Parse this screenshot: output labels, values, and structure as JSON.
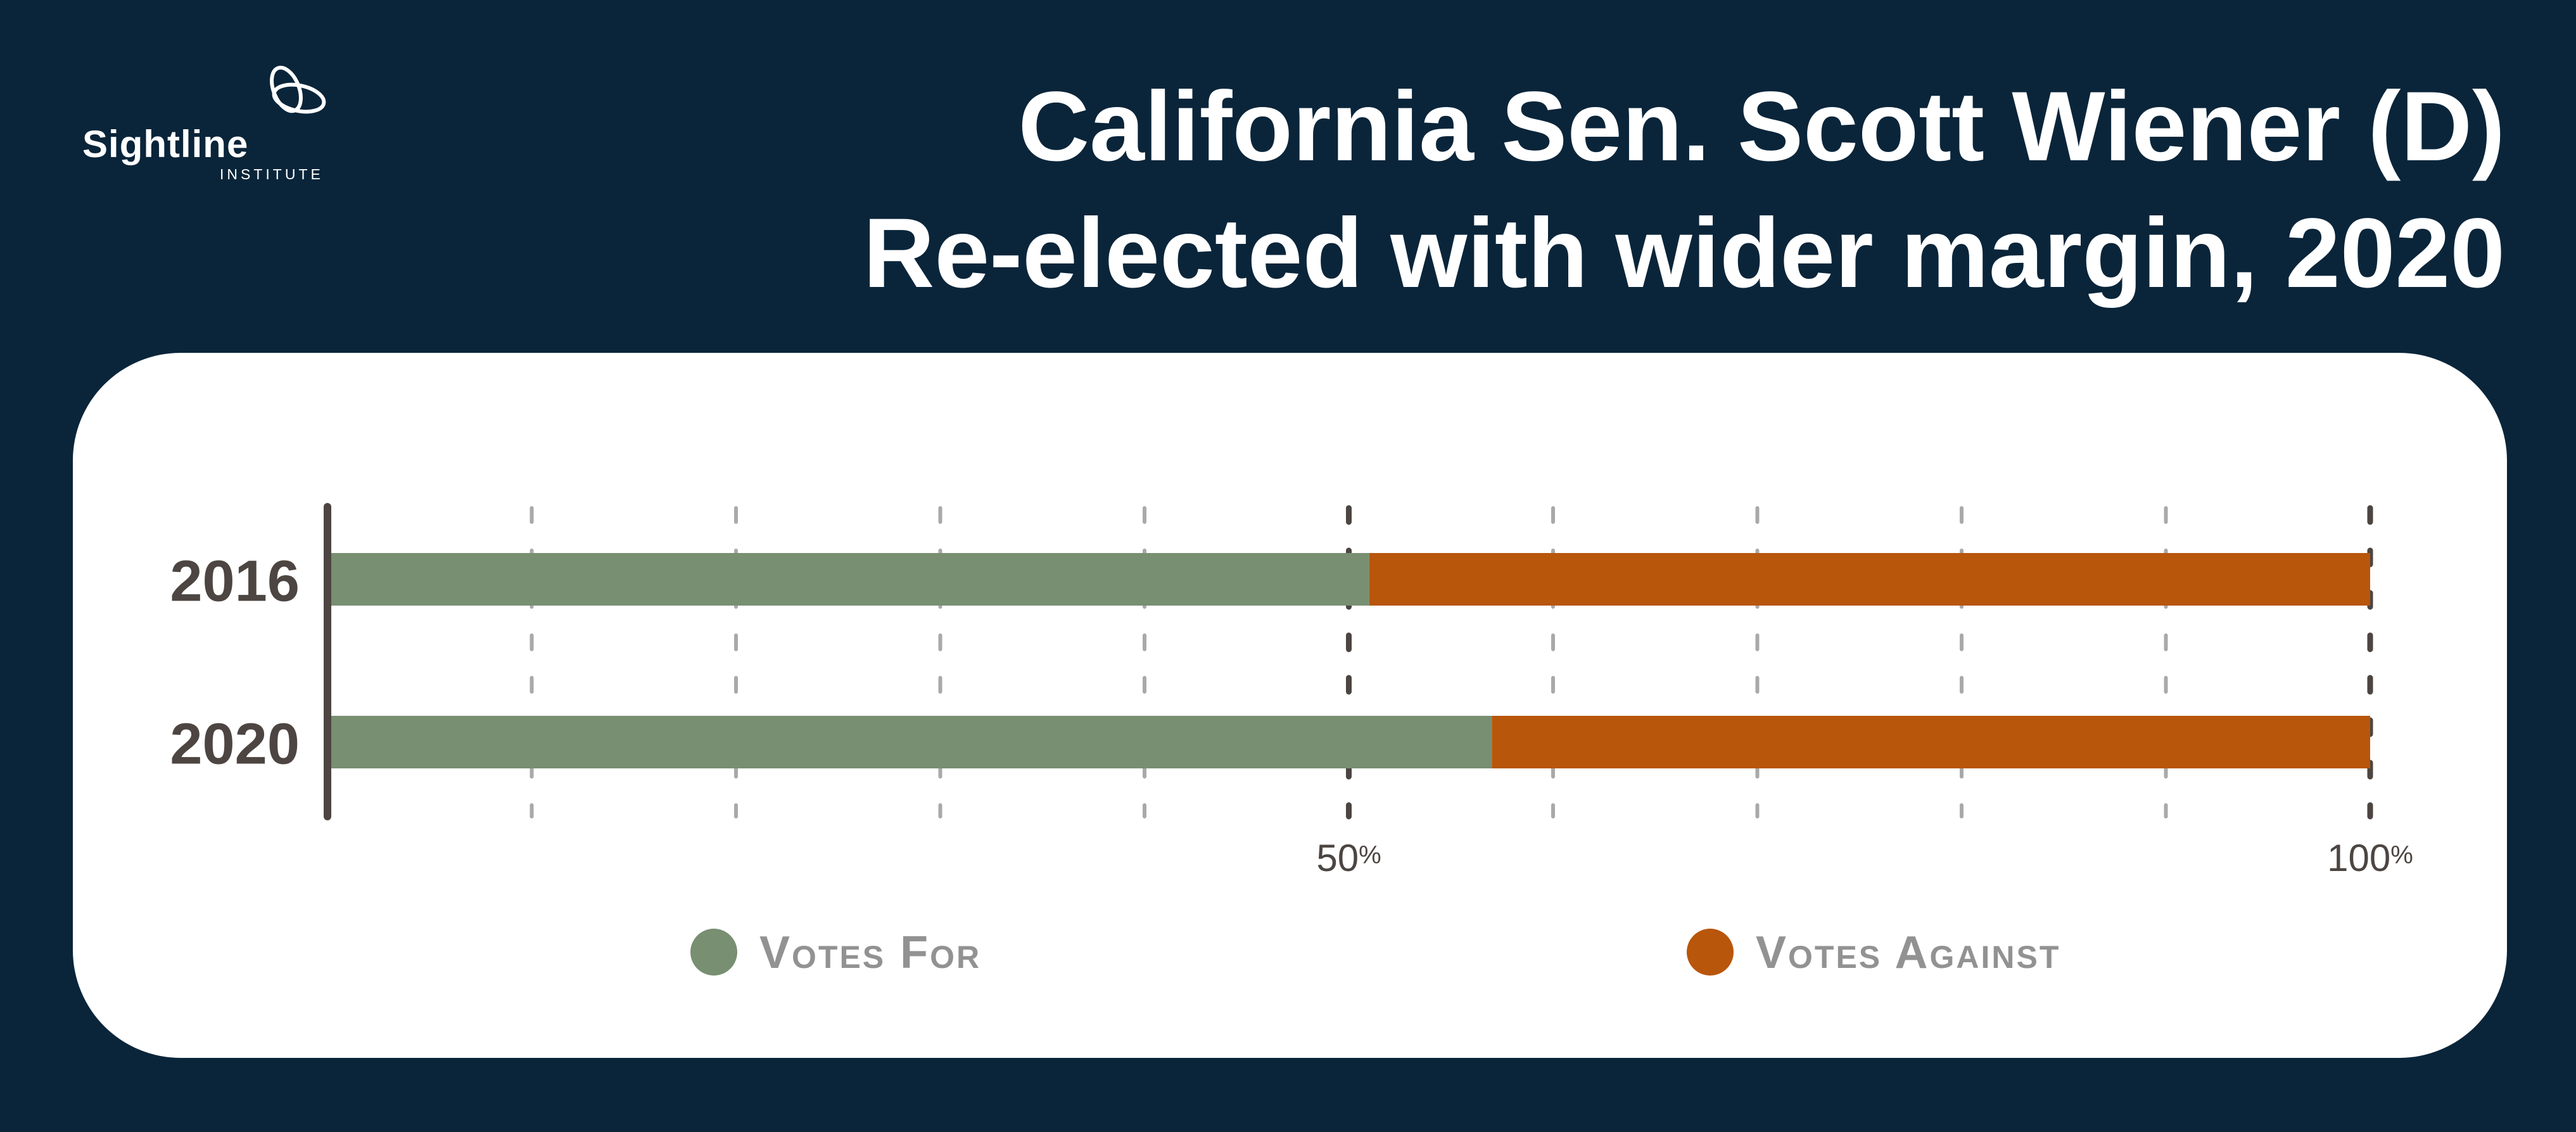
{
  "logo": {
    "name": "Sightline",
    "sub": "INSTITUTE"
  },
  "title": {
    "line1": "California Sen. Scott Wiener (D)",
    "line2": "Re-elected with wider margin, 2020"
  },
  "colors": {
    "background": "#0a253a",
    "card": "#ffffff",
    "votes_for": "#788f72",
    "votes_against": "#b8560b",
    "axis": "#4c4541",
    "label": "#4c4541",
    "legend_text": "#929292",
    "grid": "#a9a9a9"
  },
  "chart_data": {
    "type": "bar",
    "orientation": "horizontal",
    "stacked": true,
    "categories": [
      "2016",
      "2020"
    ],
    "series": [
      {
        "name": "Votes For",
        "values": [
          51,
          57
        ]
      },
      {
        "name": "Votes Against",
        "values": [
          49,
          43
        ]
      }
    ],
    "xlim": [
      0,
      100
    ],
    "grid_step": 10,
    "major_ticks": [
      50,
      100
    ],
    "tick_labels": [
      {
        "value": 50,
        "number": "50",
        "unit": "%"
      },
      {
        "value": 100,
        "number": "100",
        "unit": "%"
      }
    ],
    "legend_position": "bottom"
  }
}
